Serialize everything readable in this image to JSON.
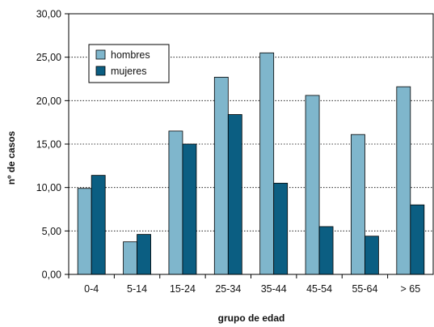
{
  "chart_data": {
    "type": "bar",
    "categories": [
      "0-4",
      "5-14",
      "15-24",
      "25-34",
      "35-44",
      "45-54",
      "55-64",
      "> 65"
    ],
    "series": [
      {
        "name": "hombres",
        "values": [
          9.9,
          3.75,
          16.5,
          22.7,
          25.5,
          20.6,
          16.1,
          21.6
        ],
        "color": "#7fb6cc"
      },
      {
        "name": "mujeres",
        "values": [
          11.4,
          4.6,
          15.0,
          18.4,
          10.5,
          5.5,
          4.4,
          8.0
        ],
        "color": "#0b5e82"
      }
    ],
    "xlabel": "grupo de edad",
    "ylabel": "nº de casos",
    "ylim": [
      0,
      30
    ],
    "yticks": [
      "0,00",
      "5,00",
      "10,00",
      "15,00",
      "20,00",
      "25,00",
      "30,00"
    ],
    "grid": "horizontal dotted",
    "legend_position": "top-left"
  }
}
